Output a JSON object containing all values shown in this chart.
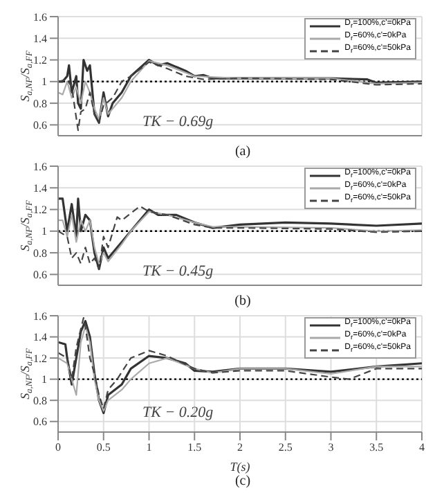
{
  "chart_data": [
    {
      "type": "line",
      "ylabel": "S$_{a,NF}$/S$_{a,FF}$",
      "annotations": [
        "TK − 0.69g",
        "(a)"
      ],
      "xlim": [
        0,
        4
      ],
      "xticks": [
        0,
        0.5,
        1,
        1.5,
        2,
        2.5,
        3,
        3.5,
        4
      ],
      "ylim": [
        0.5,
        1.6
      ],
      "yticks": [
        0.6,
        0.8,
        1,
        1.2,
        1.4,
        1.6
      ],
      "tick_labels": "y",
      "grid": true,
      "legend": "top right",
      "marker": "none",
      "ref_lines": [
        {
          "axis": "y",
          "value": 1,
          "color": "#000000",
          "line_style": "dotted"
        }
      ],
      "series": [
        {
          "name": "D$_{r}$=100%,c'=0kPa",
          "color": "#333333",
          "line_style": "solid",
          "x": [
            0,
            0.05,
            0.1,
            0.12,
            0.15,
            0.2,
            0.22,
            0.25,
            0.28,
            0.32,
            0.35,
            0.4,
            0.45,
            0.5,
            0.55,
            0.6,
            0.7,
            0.8,
            1.0,
            1.1,
            1.2,
            1.4,
            1.5,
            1.6,
            1.7,
            2,
            2.5,
            3,
            3.4,
            3.5,
            4
          ],
          "values": [
            1.0,
            1.0,
            1.05,
            1.15,
            0.9,
            1.05,
            0.8,
            0.75,
            1.2,
            1.1,
            1.15,
            0.7,
            0.62,
            0.9,
            0.68,
            0.8,
            0.9,
            1.05,
            1.2,
            1.15,
            1.17,
            1.1,
            1.05,
            1.06,
            1.03,
            1.03,
            1.03,
            1.03,
            1.02,
            0.99,
            1.0
          ]
        },
        {
          "name": "D$_{r}$=60%,c'=0kPa",
          "color": "#aaaaaa",
          "line_style": "solid",
          "x": [
            0,
            0.05,
            0.1,
            0.15,
            0.2,
            0.25,
            0.3,
            0.35,
            0.4,
            0.45,
            0.5,
            0.55,
            0.7,
            0.8,
            1.0,
            1.2,
            1.5,
            2,
            3,
            3.5,
            4
          ],
          "values": [
            0.9,
            0.88,
            1.0,
            0.85,
            0.95,
            0.8,
            1.0,
            0.9,
            0.75,
            0.65,
            0.85,
            0.7,
            0.85,
            1.0,
            1.19,
            1.15,
            1.05,
            1.03,
            1.03,
            0.98,
            0.99
          ]
        },
        {
          "name": "D$_{r}$=60%,c'=50kPa",
          "color": "#444444",
          "line_style": "dashed",
          "x": [
            0,
            0.1,
            0.15,
            0.22,
            0.25,
            0.3,
            0.35,
            0.4,
            0.45,
            0.5,
            0.6,
            0.7,
            0.8,
            1.0,
            1.2,
            1.4,
            1.6,
            2,
            3,
            3.5,
            4
          ],
          "values": [
            1.0,
            1.02,
            0.95,
            0.55,
            0.72,
            0.75,
            0.9,
            0.7,
            0.63,
            0.78,
            0.85,
            1.0,
            1.05,
            1.18,
            1.12,
            1.05,
            1.02,
            1.03,
            1.02,
            0.97,
            0.98
          ]
        }
      ]
    },
    {
      "type": "line",
      "ylabel": "S$_{a,NF}$/S$_{a,FF}$",
      "annotations": [
        "TK − 0.45g",
        "(b)"
      ],
      "xlim": [
        0,
        4
      ],
      "xticks": [
        0,
        0.5,
        1,
        1.5,
        2,
        2.5,
        3,
        3.5,
        4
      ],
      "ylim": [
        0.5,
        1.6
      ],
      "yticks": [
        0.6,
        0.8,
        1,
        1.2,
        1.4,
        1.6
      ],
      "tick_labels": "y",
      "grid": true,
      "legend": "top right",
      "marker": "none",
      "ref_lines": [
        {
          "axis": "y",
          "value": 1,
          "color": "#000000",
          "line_style": "dotted"
        }
      ],
      "series": [
        {
          "name": "D$_{r}$=100%,c'=0kPa",
          "color": "#333333",
          "line_style": "solid",
          "x": [
            0,
            0.05,
            0.1,
            0.15,
            0.2,
            0.22,
            0.25,
            0.3,
            0.35,
            0.4,
            0.45,
            0.5,
            0.55,
            0.7,
            0.8,
            1.0,
            1.1,
            1.3,
            1.5,
            1.7,
            2,
            2.5,
            3,
            3.5,
            4
          ],
          "values": [
            1.3,
            1.3,
            1.0,
            1.25,
            0.95,
            1.3,
            1.0,
            1.15,
            1.1,
            0.8,
            0.65,
            0.85,
            0.75,
            0.9,
            1.0,
            1.2,
            1.15,
            1.15,
            1.08,
            1.03,
            1.06,
            1.08,
            1.07,
            1.05,
            1.07
          ]
        },
        {
          "name": "D$_{r}$=60%,c'=0kPa",
          "color": "#aaaaaa",
          "line_style": "solid",
          "x": [
            0,
            0.05,
            0.1,
            0.15,
            0.2,
            0.25,
            0.3,
            0.35,
            0.4,
            0.45,
            0.5,
            0.55,
            0.7,
            0.8,
            1.0,
            1.2,
            1.5,
            1.7,
            2,
            3,
            3.5,
            4
          ],
          "values": [
            1.1,
            1.1,
            0.95,
            1.15,
            0.9,
            1.1,
            1.0,
            1.1,
            0.85,
            0.7,
            0.8,
            0.72,
            0.88,
            1.0,
            1.18,
            1.15,
            1.08,
            1.04,
            1.04,
            1.03,
            1.0,
            1.01
          ]
        },
        {
          "name": "D$_{r}$=60%,c'=50kPa",
          "color": "#444444",
          "line_style": "dashed",
          "x": [
            0,
            0.1,
            0.15,
            0.2,
            0.25,
            0.3,
            0.35,
            0.4,
            0.45,
            0.5,
            0.55,
            0.65,
            0.7,
            0.9,
            1.0,
            1.2,
            1.5,
            1.7,
            2,
            3,
            3.5,
            4
          ],
          "values": [
            1.0,
            0.95,
            0.75,
            0.8,
            0.7,
            0.85,
            0.7,
            0.75,
            0.65,
            0.95,
            0.85,
            1.13,
            1.1,
            1.23,
            1.18,
            1.15,
            1.06,
            1.03,
            1.03,
            1.02,
            0.99,
            1.0
          ]
        }
      ]
    },
    {
      "type": "line",
      "xlabel": "T(s)",
      "ylabel": "S$_{a,NF}$/S$_{a,FF}$",
      "annotations": [
        "TK − 0.20g",
        "(c)"
      ],
      "xlim": [
        0,
        4
      ],
      "xticks": [
        0,
        0.5,
        1,
        1.5,
        2,
        2.5,
        3,
        3.5,
        4
      ],
      "ylim": [
        0.5,
        1.6
      ],
      "yticks": [
        0.6,
        0.8,
        1,
        1.2,
        1.4,
        1.6
      ],
      "grid": true,
      "legend": "top right",
      "marker": "none",
      "ref_lines": [
        {
          "axis": "y",
          "value": 1,
          "color": "#000000",
          "line_style": "dotted"
        }
      ],
      "series": [
        {
          "name": "D$_{r}$=100%,c'=0kPa",
          "color": "#333333",
          "line_style": "solid",
          "x": [
            0,
            0.08,
            0.1,
            0.15,
            0.2,
            0.25,
            0.3,
            0.35,
            0.4,
            0.45,
            0.5,
            0.55,
            0.7,
            0.8,
            1.0,
            1.2,
            1.4,
            1.5,
            1.7,
            2,
            2.5,
            3,
            3.5,
            4
          ],
          "values": [
            1.35,
            1.33,
            1.2,
            0.95,
            1.2,
            1.45,
            1.55,
            1.4,
            1.05,
            0.8,
            0.68,
            0.85,
            0.95,
            1.1,
            1.22,
            1.2,
            1.15,
            1.08,
            1.07,
            1.1,
            1.1,
            1.07,
            1.12,
            1.15
          ]
        },
        {
          "name": "D$_{r}$=60%,c'=0kPa",
          "color": "#aaaaaa",
          "line_style": "solid",
          "x": [
            0,
            0.1,
            0.15,
            0.2,
            0.25,
            0.3,
            0.35,
            0.4,
            0.45,
            0.5,
            0.55,
            0.7,
            0.8,
            1.0,
            1.2,
            1.5,
            1.7,
            2,
            2.5,
            3,
            3.5,
            4
          ],
          "values": [
            1.2,
            1.15,
            1.0,
            0.85,
            1.35,
            1.5,
            1.35,
            1.0,
            0.8,
            0.7,
            0.8,
            0.9,
            1.0,
            1.15,
            1.2,
            1.1,
            1.06,
            1.1,
            1.1,
            1.05,
            1.12,
            1.12
          ]
        },
        {
          "name": "D$_{r}$=60%,c'=50kPa",
          "color": "#444444",
          "line_style": "dashed",
          "x": [
            0,
            0.1,
            0.15,
            0.2,
            0.28,
            0.3,
            0.35,
            0.4,
            0.45,
            0.5,
            0.55,
            0.65,
            0.8,
            1.0,
            1.2,
            1.5,
            1.7,
            2,
            2.5,
            3,
            3.2,
            3.5,
            4
          ],
          "values": [
            1.25,
            1.2,
            1.0,
            1.3,
            1.58,
            1.5,
            1.2,
            1.05,
            0.85,
            0.72,
            0.9,
            1.0,
            1.2,
            1.27,
            1.22,
            1.1,
            1.06,
            1.08,
            1.08,
            1.02,
            1.0,
            1.1,
            1.1
          ]
        }
      ]
    }
  ]
}
